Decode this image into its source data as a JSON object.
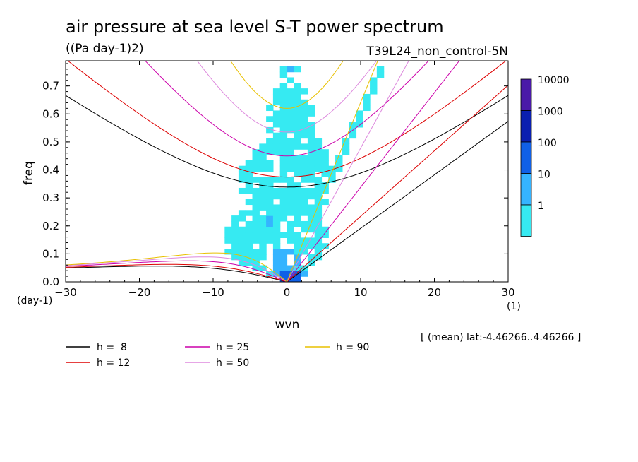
{
  "chart_data": {
    "type": "heatmap",
    "title": "air pressure at sea level S-T power spectrum",
    "units": "((Pa day-1)2)",
    "run_label": "T39L24_non_control-5N",
    "xlabel": "wvn",
    "ylabel": "freq",
    "x_unit": "(1)",
    "y_unit": "(day-1)",
    "xlim": [
      -30,
      30
    ],
    "ylim": [
      0,
      0.79
    ],
    "x_ticks": [
      "-30",
      "-20",
      "-10",
      "0",
      "10",
      "20",
      "30"
    ],
    "y_ticks": [
      "0.0",
      "0.1",
      "0.2",
      "0.3",
      "0.4",
      "0.5",
      "0.6",
      "0.7"
    ],
    "footnote": "[ (mean) lat:-4.46266..4.46266 ]",
    "colorbar": {
      "labels": [
        "10000",
        "1000",
        "100",
        "10",
        "1"
      ],
      "colors": [
        "#4a1aa8",
        "#0a1fb0",
        "#1060e6",
        "#35b4ff",
        "#36eaf2"
      ]
    },
    "contour_levels": [
      1,
      10,
      100,
      1000,
      10000
    ],
    "legend": [
      {
        "label": "h =  8",
        "color": "#000000"
      },
      {
        "label": "h = 12",
        "color": "#dd0000"
      },
      {
        "label": "h = 25",
        "color": "#cc00aa"
      },
      {
        "label": "h = 50",
        "color": "#dd88dd"
      },
      {
        "label": "h = 90",
        "color": "#e8c000"
      }
    ],
    "equivalent_depths_m": [
      8,
      12,
      25,
      50,
      90
    ],
    "power_regions": [
      {
        "x": [
          -3,
          4
        ],
        "y": [
          0.0,
          0.72
        ],
        "level": 1,
        "desc": "main vertical band"
      },
      {
        "x": [
          -6,
          -1
        ],
        "y": [
          0.28,
          0.47
        ],
        "level": 1
      },
      {
        "x": [
          1,
          6
        ],
        "y": [
          0.33,
          0.5
        ],
        "level": 1
      },
      {
        "x": [
          -8,
          5
        ],
        "y": [
          0.04,
          0.27
        ],
        "level": 1
      },
      {
        "x": [
          -3,
          2
        ],
        "y": [
          0.02,
          0.14
        ],
        "level": 10
      },
      {
        "x": [
          -3,
          -2
        ],
        "y": [
          0.2,
          0.24
        ],
        "level": 10
      },
      {
        "x": [
          0,
          1
        ],
        "y": [
          0.73,
          0.77
        ],
        "level": 10
      },
      {
        "x": [
          -1,
          2
        ],
        "y": [
          0.0,
          0.04
        ],
        "level": 100
      }
    ]
  }
}
